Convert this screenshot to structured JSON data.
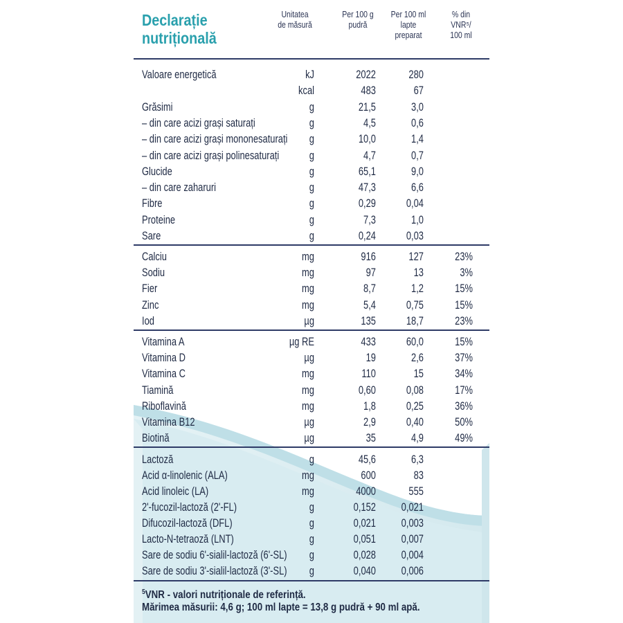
{
  "title": {
    "line1": "Declarație",
    "line2": "nutrițională"
  },
  "columns": {
    "unit": [
      "Unitatea",
      "de măsură"
    ],
    "per100g": [
      "Per 100 g",
      "pudră"
    ],
    "per100ml": [
      "Per 100 ml",
      "lapte",
      "preparat"
    ],
    "vnr": [
      "% din",
      "VNR⁵/",
      "100 ml"
    ]
  },
  "sections": [
    {
      "rows": [
        {
          "name": "Valoare energetică",
          "unit": "kJ",
          "per100g": "2022",
          "per100ml": "280",
          "vnr": ""
        },
        {
          "name": "",
          "unit": "kcal",
          "per100g": "483",
          "per100ml": "67",
          "vnr": ""
        },
        {
          "name": "Grăsimi",
          "unit": "g",
          "per100g": "21,5",
          "per100ml": "3,0",
          "vnr": ""
        },
        {
          "name": "– din care acizi grași saturați",
          "unit": "g",
          "per100g": "4,5",
          "per100ml": "0,6",
          "vnr": ""
        },
        {
          "name": "– din care acizi grași mononesaturați",
          "unit": "g",
          "per100g": "10,0",
          "per100ml": "1,4",
          "vnr": ""
        },
        {
          "name": "– din care acizi grași polinesaturați",
          "unit": "g",
          "per100g": "4,7",
          "per100ml": "0,7",
          "vnr": ""
        },
        {
          "name": "Glucide",
          "unit": "g",
          "per100g": "65,1",
          "per100ml": "9,0",
          "vnr": ""
        },
        {
          "name": "– din care zaharuri",
          "unit": "g",
          "per100g": "47,3",
          "per100ml": "6,6",
          "vnr": ""
        },
        {
          "name": "Fibre",
          "unit": "g",
          "per100g": "0,29",
          "per100ml": "0,04",
          "vnr": ""
        },
        {
          "name": "Proteine",
          "unit": "g",
          "per100g": "7,3",
          "per100ml": "1,0",
          "vnr": ""
        },
        {
          "name": "Sare",
          "unit": "g",
          "per100g": "0,24",
          "per100ml": "0,03",
          "vnr": ""
        }
      ]
    },
    {
      "rows": [
        {
          "name": "Calciu",
          "unit": "mg",
          "per100g": "916",
          "per100ml": "127",
          "vnr": "23%"
        },
        {
          "name": "Sodiu",
          "unit": "mg",
          "per100g": "97",
          "per100ml": "13",
          "vnr": "3%"
        },
        {
          "name": "Fier",
          "unit": "mg",
          "per100g": "8,7",
          "per100ml": "1,2",
          "vnr": "15%"
        },
        {
          "name": "Zinc",
          "unit": "mg",
          "per100g": "5,4",
          "per100ml": "0,75",
          "vnr": "15%"
        },
        {
          "name": "Iod",
          "unit": "µg",
          "per100g": "135",
          "per100ml": "18,7",
          "vnr": "23%"
        }
      ]
    },
    {
      "rows": [
        {
          "name": "Vitamina A",
          "unit": "µg RE",
          "per100g": "433",
          "per100ml": "60,0",
          "vnr": "15%"
        },
        {
          "name": "Vitamina D",
          "unit": "µg",
          "per100g": "19",
          "per100ml": "2,6",
          "vnr": "37%"
        },
        {
          "name": "Vitamina C",
          "unit": "mg",
          "per100g": "110",
          "per100ml": "15",
          "vnr": "34%"
        },
        {
          "name": "Tiamină",
          "unit": "mg",
          "per100g": "0,60",
          "per100ml": "0,08",
          "vnr": "17%"
        },
        {
          "name": "Riboflavină",
          "unit": "mg",
          "per100g": "1,8",
          "per100ml": "0,25",
          "vnr": "36%"
        },
        {
          "name": "Vitamina B12",
          "unit": "µg",
          "per100g": "2,9",
          "per100ml": "0,40",
          "vnr": "50%"
        },
        {
          "name": "Biotină",
          "unit": "µg",
          "per100g": "35",
          "per100ml": "4,9",
          "vnr": "49%"
        }
      ]
    },
    {
      "rows": [
        {
          "name": "Lactoză",
          "unit": "g",
          "per100g": "45,6",
          "per100ml": "6,3",
          "vnr": ""
        },
        {
          "name": "Acid α-linolenic (ALA)",
          "unit": "mg",
          "per100g": "600",
          "per100ml": "83",
          "vnr": ""
        },
        {
          "name": "Acid linoleic (LA)",
          "unit": "mg",
          "per100g": "4000",
          "per100ml": "555",
          "vnr": ""
        },
        {
          "name": "2'-fucozil-lactoză (2'-FL)",
          "unit": "g",
          "per100g": "0,152",
          "per100ml": "0,021",
          "vnr": ""
        },
        {
          "name": "Difucozil-lactoză (DFL)",
          "unit": "g",
          "per100g": "0,021",
          "per100ml": "0,003",
          "vnr": ""
        },
        {
          "name": "Lacto-N-tetraoză (LNT)",
          "unit": "g",
          "per100g": "0,051",
          "per100ml": "0,007",
          "vnr": ""
        },
        {
          "name": "Sare de sodiu 6'-sialil-lactoză (6'-SL)",
          "unit": "g",
          "per100g": "0,028",
          "per100ml": "0,004",
          "vnr": ""
        },
        {
          "name": "Sare de sodiu 3'-sialil-lactoză (3'-SL)",
          "unit": "g",
          "per100g": "0,040",
          "per100ml": "0,006",
          "vnr": ""
        }
      ]
    }
  ],
  "footnotes": {
    "vnr_mark": "5",
    "vnr": "VNR - valori nutriționale de referință.",
    "serving": "Mărimea măsurii: 4,6 g; 100 ml lapte = 13,8 g pudră + 90 ml apă."
  },
  "colors": {
    "accent": "#2aa0ad",
    "text": "#1f2a44",
    "rule": "#2d3a66"
  }
}
